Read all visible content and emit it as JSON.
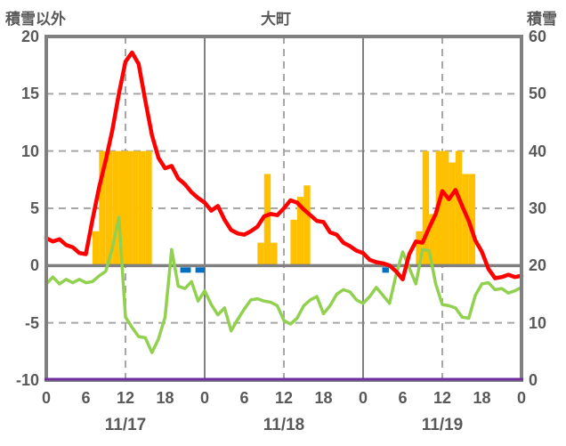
{
  "header": {
    "left_label": "積雪以外",
    "title": "大町",
    "right_label": "積雪"
  },
  "chart_data": {
    "type": "line+bar",
    "title": "大町",
    "left_axis": {
      "label": "積雪以外",
      "min": -10,
      "max": 20,
      "step": 5,
      "tick_labels": [
        "20",
        "15",
        "10",
        "5",
        "0",
        "-5",
        "-10"
      ],
      "tick_values": [
        20,
        15,
        10,
        5,
        0,
        -5,
        -10
      ]
    },
    "right_axis": {
      "label": "積雪",
      "min": 0,
      "max": 60,
      "step": 10,
      "tick_labels": [
        "60",
        "50",
        "40",
        "30",
        "20",
        "10",
        "0"
      ],
      "tick_values": [
        60,
        50,
        40,
        30,
        20,
        10,
        0
      ]
    },
    "x_axis": {
      "hours_total": 72,
      "tick_every_hours": 6,
      "tick_labels": [
        "0",
        "6",
        "12",
        "18",
        "0",
        "6",
        "12",
        "18",
        "0",
        "6",
        "12",
        "18",
        "0"
      ],
      "date_labels": [
        "11/17",
        "11/18",
        "11/19"
      ],
      "date_center_hours": [
        12,
        36,
        60
      ],
      "solid_gridline_hours": [
        24,
        48
      ],
      "dashed_gridline_hours": [
        12,
        36,
        60
      ]
    },
    "grid": {
      "dashed_horizontal_values": [
        15,
        10,
        5,
        -5
      ],
      "zero_line_value": 0
    },
    "series": [
      {
        "name": "temperature-red-line",
        "type": "line",
        "axis": "left",
        "values_hourly": [
          2.4,
          2.1,
          2.3,
          1.8,
          1.6,
          1.1,
          1.0,
          4.0,
          6.8,
          9.2,
          11.8,
          15.0,
          17.8,
          18.6,
          17.6,
          14.4,
          11.4,
          9.4,
          8.5,
          8.7,
          7.6,
          7.1,
          6.4,
          5.9,
          5.5,
          4.8,
          5.2,
          4.0,
          3.1,
          2.8,
          2.7,
          3.0,
          3.4,
          4.3,
          4.5,
          4.4,
          5.0,
          5.7,
          5.5,
          4.9,
          4.4,
          3.9,
          3.8,
          2.9,
          2.7,
          2.0,
          1.7,
          1.3,
          1.1,
          0.5,
          0.3,
          0.2,
          0.0,
          -0.5,
          -1.2,
          1.0,
          2.1,
          2.0,
          3.3,
          4.5,
          6.5,
          5.8,
          6.6,
          5.2,
          3.9,
          2.2,
          1.2,
          -0.3,
          -1.1,
          -1.0,
          -0.8,
          -1.0,
          -0.9
        ]
      },
      {
        "name": "secondary-green-line",
        "type": "line",
        "axis": "left",
        "values_hourly": [
          -1.6,
          -1.0,
          -1.6,
          -1.2,
          -1.5,
          -1.2,
          -1.5,
          -1.4,
          -0.9,
          -0.5,
          1.5,
          4.2,
          -4.5,
          -5.4,
          -6.2,
          -6.3,
          -7.6,
          -6.4,
          -4.5,
          1.4,
          -1.8,
          -2.0,
          -1.4,
          -3.1,
          -2.2,
          -3.4,
          -4.3,
          -3.7,
          -5.7,
          -4.7,
          -3.8,
          -3.0,
          -2.9,
          -3.1,
          -3.2,
          -3.5,
          -4.8,
          -5.1,
          -4.6,
          -3.5,
          -3.0,
          -2.7,
          -4.2,
          -3.5,
          -2.5,
          -2.1,
          -2.3,
          -3.0,
          -3.3,
          -2.7,
          -1.9,
          -2.6,
          -3.3,
          -0.8,
          1.2,
          -0.2,
          -1.6,
          1.4,
          1.3,
          -1.6,
          -3.4,
          -3.5,
          -3.7,
          -4.5,
          -4.6,
          -2.6,
          -1.6,
          -1.5,
          -2.1,
          -2.0,
          -2.4,
          -2.2,
          -1.9
        ]
      },
      {
        "name": "snowfall-bars",
        "type": "bar",
        "axis": "left",
        "bars": [
          {
            "hour": 7,
            "value": 3
          },
          {
            "hour": 8,
            "value": 10
          },
          {
            "hour": 9,
            "value": 10
          },
          {
            "hour": 10,
            "value": 10
          },
          {
            "hour": 11,
            "value": 10
          },
          {
            "hour": 12,
            "value": 10
          },
          {
            "hour": 13,
            "value": 10
          },
          {
            "hour": 14,
            "value": 10
          },
          {
            "hour": 15,
            "value": 10
          },
          {
            "hour": 32,
            "value": 2
          },
          {
            "hour": 33,
            "value": 8
          },
          {
            "hour": 34,
            "value": 2
          },
          {
            "hour": 37,
            "value": 4
          },
          {
            "hour": 38,
            "value": 6
          },
          {
            "hour": 39,
            "value": 7
          },
          {
            "hour": 56,
            "value": 3
          },
          {
            "hour": 57,
            "value": 10
          },
          {
            "hour": 58,
            "value": 4.5
          },
          {
            "hour": 59,
            "value": 10
          },
          {
            "hour": 60,
            "value": 10
          },
          {
            "hour": 61,
            "value": 9
          },
          {
            "hour": 62,
            "value": 10
          },
          {
            "hour": 63,
            "value": 8
          },
          {
            "hour": 64,
            "value": 8
          }
        ]
      },
      {
        "name": "rain-marks-blue",
        "type": "mark",
        "segments_hours": [
          {
            "from": 20.3,
            "to": 21.9
          },
          {
            "from": 22.6,
            "to": 24.0
          },
          {
            "from": 50.9,
            "to": 51.9
          }
        ]
      },
      {
        "name": "snow-depth-purple-line",
        "type": "line",
        "axis": "right",
        "constant_value": 0
      }
    ],
    "colors": {
      "bar_orange": "#FFC000",
      "line_red": "#FF0000",
      "line_green": "#92D050",
      "mark_blue": "#0070C0",
      "line_purple": "#7030A0",
      "grid_dashed": "#A6A6A6",
      "axis_gray": "#808080",
      "text_gray": "#595959"
    },
    "legend_position": "none"
  }
}
